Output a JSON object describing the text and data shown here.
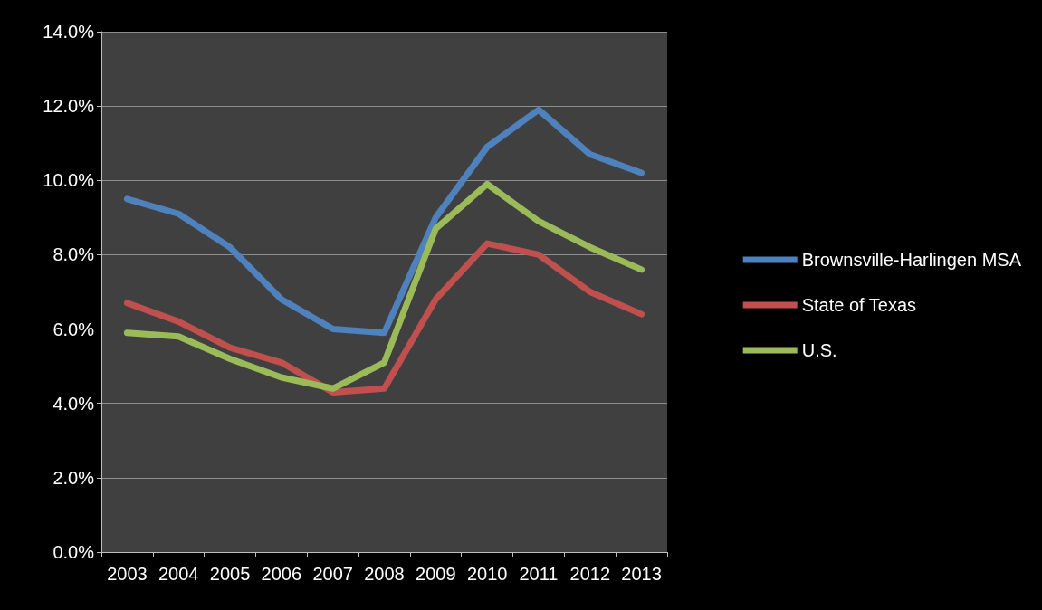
{
  "chart_data": {
    "type": "line",
    "categories": [
      "2003",
      "2004",
      "2005",
      "2006",
      "2007",
      "2008",
      "2009",
      "2010",
      "2011",
      "2012",
      "2013"
    ],
    "series": [
      {
        "name": "Brownsville-Harlingen MSA",
        "color": "#4f81bd",
        "values": [
          9.5,
          9.1,
          8.2,
          6.8,
          6.0,
          5.9,
          9.0,
          10.9,
          11.9,
          10.7,
          10.2
        ]
      },
      {
        "name": "State of Texas",
        "color": "#c0504d",
        "values": [
          6.7,
          6.2,
          5.5,
          5.1,
          4.3,
          4.4,
          6.8,
          8.3,
          8.0,
          7.0,
          6.4
        ]
      },
      {
        "name": "U.S.",
        "color": "#9bbb59",
        "values": [
          5.9,
          5.8,
          5.2,
          4.7,
          4.4,
          5.1,
          8.7,
          9.9,
          8.9,
          8.2,
          7.6
        ]
      }
    ],
    "ylim": [
      0,
      14
    ],
    "yticks": [
      {
        "value": 0,
        "label": "0.0%"
      },
      {
        "value": 2,
        "label": "2.0%"
      },
      {
        "value": 4,
        "label": "4.0%"
      },
      {
        "value": 6,
        "label": "6.0%"
      },
      {
        "value": 8,
        "label": "8.0%"
      },
      {
        "value": 10,
        "label": "10.0%"
      },
      {
        "value": 12,
        "label": "12.0%"
      },
      {
        "value": 14,
        "label": "14.0%"
      }
    ],
    "grid": "y",
    "legend": "right",
    "marker": "none",
    "line_style": "solid"
  }
}
